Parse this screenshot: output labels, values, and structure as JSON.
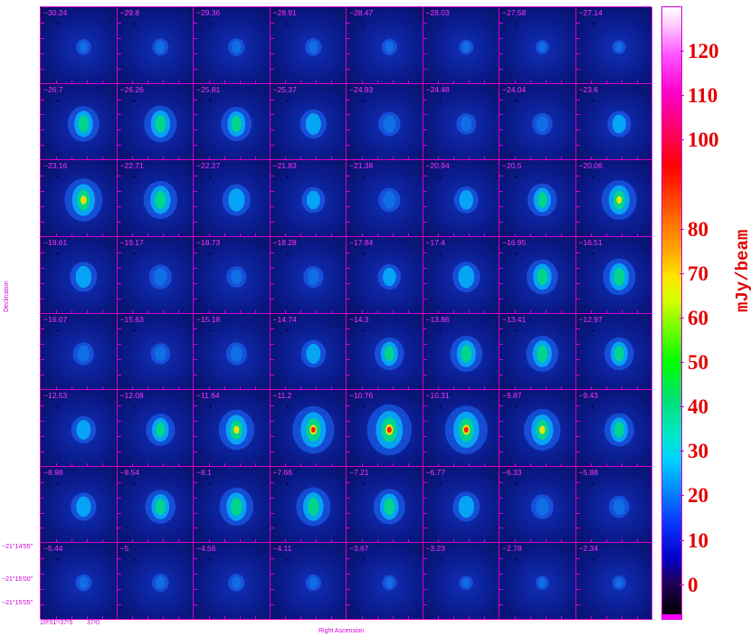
{
  "figure": {
    "xlabel": "Right Ascension",
    "ylabel": "Declination",
    "dec_ticks": [
      "−21°14′55″",
      "−21°15′00″",
      "−21°15′05″"
    ],
    "ra_ticks": [
      "10ʰ51ᵐ37ˢ5",
      "37ˢ0"
    ],
    "frame_color": "#d400d4",
    "label_color": "#ff33ff"
  },
  "channels": [
    "−30.24",
    "−29.8",
    "−29.36",
    "−28.91",
    "−28.47",
    "−28.03",
    "−27.58",
    "−27.14",
    "−26.7",
    "−26.26",
    "−25.81",
    "−25.37",
    "−24.93",
    "−24.48",
    "−24.04",
    "−23.6",
    "−23.16",
    "−22.71",
    "−22.27",
    "−21.83",
    "−21.38",
    "−20.94",
    "−20.5",
    "−20.06",
    "−19.61",
    "−19.17",
    "−18.73",
    "−18.28",
    "−17.84",
    "−17.4",
    "−16.95",
    "−16.51",
    "−16.07",
    "−15.63",
    "−15.18",
    "−14.74",
    "−14.3",
    "−13.86",
    "−13.41",
    "−12.97",
    "−12.53",
    "−12.08",
    "−11.64",
    "−11.2",
    "−10.76",
    "−10.31",
    "−9.87",
    "−9.43",
    "−8.98",
    "−8.54",
    "−8.1",
    "−7.66",
    "−7.21",
    "−6.77",
    "−6.33",
    "−5.88",
    "−5.44",
    "−5",
    "−4.56",
    "−4.11",
    "−3.67",
    "−3.23",
    "−2.78",
    "−2.34"
  ],
  "colorbar": {
    "unit": "mJy/beam",
    "labels": [
      "120",
      "110",
      "100",
      "80",
      "70",
      "60",
      "50",
      "40",
      "30",
      "20",
      "10",
      "0"
    ],
    "values": [
      120,
      110,
      100,
      80,
      70,
      60,
      50,
      40,
      30,
      20,
      10,
      0
    ]
  }
}
